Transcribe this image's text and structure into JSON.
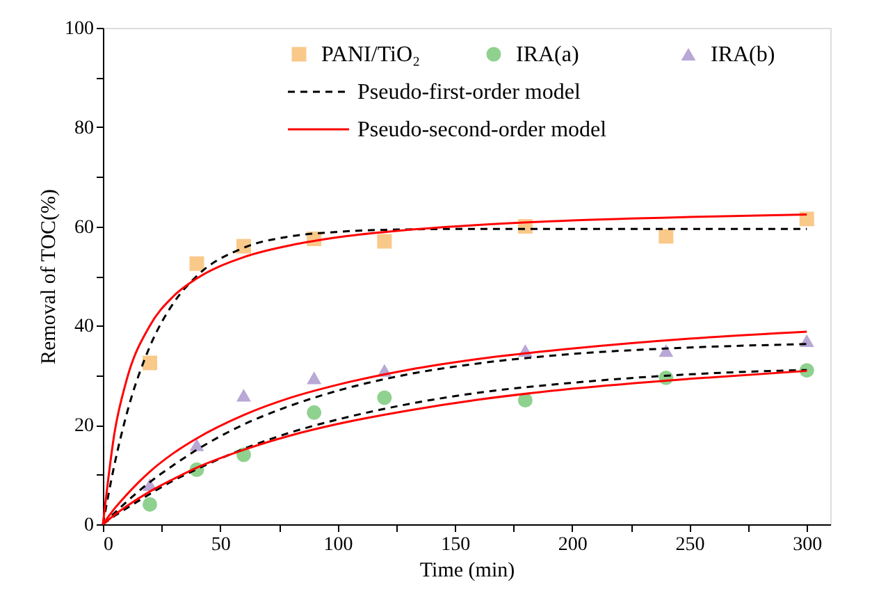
{
  "chart_data": {
    "type": "scatter",
    "xlabel": "Time (min)",
    "ylabel": "Removal of TOC(%)",
    "xlim": [
      0,
      310
    ],
    "ylim": [
      0,
      100
    ],
    "xticks": [
      0,
      {
        "value": 25,
        "label": null
      },
      50,
      {
        "value": 75,
        "label": null
      },
      100,
      {
        "value": 125,
        "label": null
      },
      150,
      {
        "value": 175,
        "label": null
      },
      200,
      {
        "value": 225,
        "label": null
      },
      250,
      {
        "value": 275,
        "label": null
      },
      300
    ],
    "yticks": [
      0,
      {
        "value": 10,
        "label": null
      },
      20,
      {
        "value": 30,
        "label": null
      },
      40,
      {
        "value": 50,
        "label": null
      },
      60,
      {
        "value": 70,
        "label": null
      },
      80,
      {
        "value": 90,
        "label": null
      },
      100
    ],
    "grid": false,
    "legend": "top right",
    "x": [
      20,
      40,
      60,
      90,
      120,
      180,
      240,
      300
    ],
    "series": [
      {
        "name": "PANI/TiO₂",
        "marker": "square",
        "color": "#f9c98a",
        "values": [
          32.5,
          52.5,
          56,
          57.5,
          57,
          60,
          58,
          61.5
        ]
      },
      {
        "name": "IRA(a)",
        "marker": "circle",
        "color": "#8fd18f",
        "values": [
          4,
          11,
          14,
          22.5,
          25.5,
          25,
          29.5,
          31
        ]
      },
      {
        "name": "IRA(b)",
        "marker": "triangle",
        "color": "#b9a7d6",
        "values": [
          8,
          16,
          26,
          29.5,
          31,
          35,
          35,
          37
        ]
      },
      {
        "name": "Pseudo-first-order model",
        "type": "line",
        "line_style": "dashed",
        "color": "#000000",
        "x": [
          0,
          5,
          10,
          20,
          30,
          40,
          60,
          80,
          100,
          130,
          160,
          200,
          250,
          300
        ],
        "values": [
          0,
          12.2,
          22.0,
          35.8,
          44.5,
          50.0,
          55.7,
          58.0,
          58.9,
          59.4,
          59.5,
          59.5,
          59.5,
          59.5
        ]
      },
      {
        "type": "line",
        "line_style": "dashed",
        "color": "#000000",
        "x": [
          0,
          5,
          10,
          20,
          30,
          40,
          60,
          80,
          100,
          130,
          160,
          200,
          250,
          300
        ],
        "values": [
          0,
          2.3,
          4.5,
          8.5,
          11.9,
          15.0,
          20.1,
          23.9,
          26.9,
          30.2,
          32.4,
          34.3,
          35.6,
          36.3
        ]
      },
      {
        "type": "line",
        "line_style": "dashed",
        "color": "#000000",
        "x": [
          0,
          5,
          10,
          20,
          30,
          40,
          60,
          80,
          100,
          130,
          160,
          200,
          250,
          300
        ],
        "values": [
          0,
          1.7,
          3.2,
          6.1,
          8.8,
          11.1,
          15.2,
          18.5,
          21.1,
          24.2,
          26.5,
          28.5,
          30.2,
          31.1
        ]
      },
      {
        "name": "Pseudo-second-order model",
        "type": "line",
        "line_style": "solid",
        "color": "#ff0000",
        "x": [
          0,
          5,
          10,
          20,
          30,
          40,
          60,
          80,
          100,
          130,
          160,
          200,
          250,
          300
        ],
        "values": [
          0,
          18.6,
          28.9,
          40.0,
          45.9,
          49.5,
          53.8,
          56.2,
          57.8,
          59.3,
          60.3,
          61.2,
          61.9,
          62.4
        ]
      },
      {
        "type": "line",
        "line_style": "solid",
        "color": "#ff0000",
        "x": [
          0,
          5,
          10,
          20,
          30,
          40,
          60,
          80,
          100,
          130,
          160,
          200,
          250,
          300
        ],
        "values": [
          0,
          3.2,
          5.9,
          10.6,
          14.3,
          17.3,
          22.0,
          25.5,
          28.1,
          31.1,
          33.3,
          35.4,
          37.4,
          38.8
        ]
      },
      {
        "type": "line",
        "line_style": "solid",
        "color": "#ff0000",
        "x": [
          0,
          5,
          10,
          20,
          30,
          40,
          60,
          80,
          100,
          130,
          160,
          200,
          250,
          300
        ],
        "values": [
          0,
          1.9,
          3.6,
          6.6,
          9.1,
          11.4,
          15.0,
          17.9,
          20.2,
          22.9,
          25.1,
          27.3,
          29.3,
          30.9
        ]
      }
    ]
  }
}
